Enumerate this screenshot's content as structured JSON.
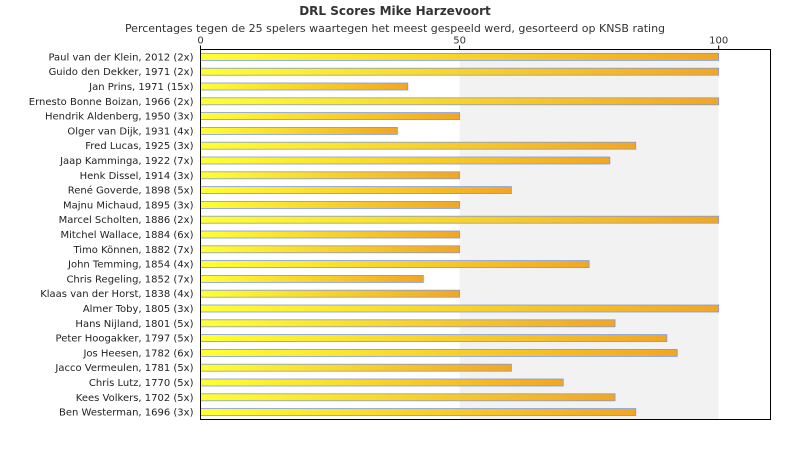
{
  "chart_data": {
    "type": "bar",
    "orientation": "horizontal",
    "title": "DRL Scores Mike Harzevoort",
    "subtitle": "Percentages tegen de 25 spelers waartegen het meest gespeeld werd, gesorteerd op KNSB rating",
    "xlim": [
      0,
      110
    ],
    "x_ticks": [
      0,
      50,
      100
    ],
    "grid": "vertical bands",
    "colors": {
      "band": "#f2f2f2",
      "bar_left": "#ffff33",
      "bar_right": "#f2a623",
      "bar_edge": "#7f9bd9",
      "frame": "#000000"
    },
    "categories": [
      "Paul van der Klein, 2012 (2x)",
      "Guido den Dekker, 1971 (2x)",
      "Jan Prins, 1971 (15x)",
      "Ernesto Bonne Boizan, 1966 (2x)",
      "Hendrik Aldenberg, 1950 (3x)",
      "Olger van Dijk, 1931 (4x)",
      "Fred Lucas, 1925 (3x)",
      "Jaap Kamminga, 1922 (7x)",
      "Henk Dissel, 1914 (3x)",
      "René Goverde, 1898 (5x)",
      "Majnu Michaud, 1895 (3x)",
      "Marcel Scholten, 1886 (2x)",
      "Mitchel Wallace, 1884 (6x)",
      "Timo Können, 1882 (7x)",
      "John Temming, 1854 (4x)",
      "Chris Regeling, 1852 (7x)",
      "Klaas van der Horst, 1838 (4x)",
      "Almer Toby, 1805 (3x)",
      "Hans Nijland, 1801 (5x)",
      "Peter Hoogakker, 1797 (5x)",
      "Jos Heesen, 1782 (6x)",
      "Jacco Vermeulen, 1781 (5x)",
      "Chris Lutz, 1770 (5x)",
      "Kees Volkers, 1702 (5x)",
      "Ben Westerman, 1696 (3x)"
    ],
    "values": [
      100,
      100,
      40,
      100,
      50,
      38,
      84,
      79,
      50,
      60,
      50,
      100,
      50,
      50,
      75,
      43,
      50,
      100,
      80,
      90,
      92,
      60,
      70,
      80,
      84
    ]
  }
}
